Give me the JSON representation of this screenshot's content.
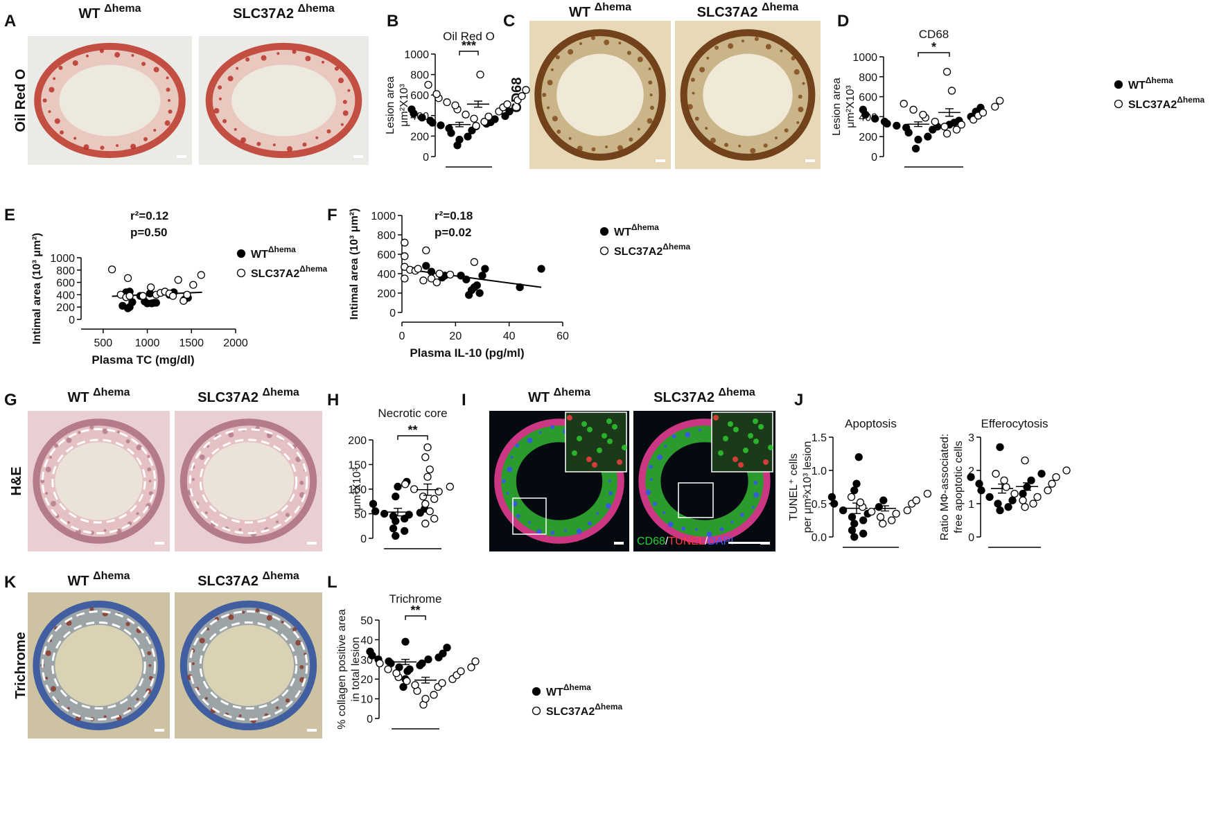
{
  "panels": [
    {
      "id": "A",
      "letter": "A",
      "top": [
        "WT",
        "SLC37A2"
      ],
      "sup": "Δhema",
      "side": "Oil Red O",
      "stain": "oilred",
      "inset": false,
      "merge": false,
      "dashed": false
    },
    {
      "id": "C",
      "letter": "C",
      "top": [
        "WT",
        "SLC37A2"
      ],
      "sup": "Δhema",
      "side": "CD68",
      "stain": "cd68",
      "inset": false,
      "merge": false,
      "dashed": false
    },
    {
      "id": "G",
      "letter": "G",
      "top": [
        "WT",
        "SLC37A2"
      ],
      "sup": "Δhema",
      "side": "H&E",
      "stain": "he",
      "inset": false,
      "merge": false,
      "dashed": true
    },
    {
      "id": "I",
      "letter": "I",
      "top": [
        "WT",
        "SLC37A2"
      ],
      "sup": "Δhema",
      "side": "",
      "stain": "fluor",
      "inset": true,
      "merge": true,
      "dashed": false
    },
    {
      "id": "K",
      "letter": "K",
      "top": [
        "WT",
        "SLC37A2"
      ],
      "sup": "Δhema",
      "side": "Trichrome",
      "stain": "trichrome",
      "inset": false,
      "merge": false,
      "dashed": true
    }
  ],
  "merge_label": [
    "CD68",
    "/",
    "TUNEL",
    "/",
    "DAPI"
  ],
  "merge_colors": [
    "#27d13a",
    "#ffffff",
    "#ff3b3b",
    "#ffffff",
    "#4a5cff"
  ],
  "legend": {
    "wt_label": "WT",
    "ko_label": "SLC37A2",
    "suffix": "Δhema"
  },
  "colors": {
    "text": "#111111",
    "filled": "#000000",
    "open": "#ffffff",
    "scale_bar": "#ffffff"
  },
  "chart_data": [
    {
      "id": "B",
      "letter": "B",
      "type": "scatter",
      "title": "Oil Red O",
      "ylabel": [
        "Lesion area",
        "μm²X10³"
      ],
      "ylim": [
        0,
        1000
      ],
      "yticks": [
        0,
        200,
        400,
        600,
        800,
        1000
      ],
      "sig": "***",
      "series": [
        {
          "values": [
            110,
            165,
            195,
            230,
            255,
            275,
            295,
            305,
            320,
            330,
            335,
            350,
            365,
            380,
            395,
            420,
            440,
            460
          ]
        },
        {
          "values": [
            300,
            340,
            370,
            390,
            410,
            440,
            460,
            480,
            500,
            510,
            530,
            550,
            570,
            590,
            610,
            650,
            700,
            800
          ]
        }
      ]
    },
    {
      "id": "D",
      "letter": "D",
      "type": "scatter",
      "title": "CD68",
      "ylabel": [
        "Lesion area",
        "μm²X10³"
      ],
      "ylim": [
        0,
        1000
      ],
      "yticks": [
        0,
        200,
        400,
        600,
        800,
        1000
      ],
      "sig": "*",
      "series": [
        {
          "values": [
            80,
            170,
            200,
            240,
            270,
            290,
            300,
            310,
            320,
            330,
            340,
            350,
            360,
            380,
            400,
            420,
            450,
            470,
            490
          ]
        },
        {
          "values": [
            230,
            270,
            300,
            320,
            350,
            370,
            390,
            410,
            420,
            440,
            470,
            500,
            530,
            560,
            660,
            850
          ]
        }
      ]
    },
    {
      "id": "H",
      "letter": "H",
      "type": "scatter",
      "title": "Necrotic core",
      "ylabel": [
        "",
        "μm²X10³"
      ],
      "ylim": [
        0,
        200
      ],
      "yticks": [
        0,
        50,
        100,
        150,
        200
      ],
      "sig": "**",
      "series": [
        {
          "values": [
            5,
            15,
            20,
            35,
            40,
            45,
            48,
            50,
            52,
            55,
            60,
            70,
            85,
            105,
            115
          ]
        },
        {
          "values": [
            30,
            40,
            55,
            70,
            80,
            85,
            95,
            100,
            105,
            110,
            125,
            140,
            165,
            185
          ]
        }
      ]
    },
    {
      "id": "J1",
      "letter": "J",
      "type": "scatter",
      "title": "Apoptosis",
      "ylabel": [
        "TUNEL⁺ cells",
        "per μm²x10³ lesion"
      ],
      "ylim": [
        0,
        1.5
      ],
      "yticks": [
        "0.0",
        "0.5",
        "1.0",
        "1.5"
      ],
      "sig": "",
      "series": [
        {
          "values": [
            0.0,
            0.05,
            0.1,
            0.2,
            0.25,
            0.3,
            0.35,
            0.4,
            0.45,
            0.5,
            0.55,
            0.6,
            0.7,
            0.8,
            1.2
          ]
        },
        {
          "values": [
            0.2,
            0.25,
            0.3,
            0.35,
            0.38,
            0.4,
            0.45,
            0.5,
            0.52,
            0.55,
            0.6,
            0.65
          ]
        }
      ]
    },
    {
      "id": "J2",
      "letter": "",
      "type": "scatter",
      "title": "Efferocytosis",
      "ylabel": [
        "Ratio MΦ-associated:",
        "free apoptotic cells"
      ],
      "ylim": [
        0,
        3
      ],
      "yticks": [
        "0",
        "1",
        "2",
        "3"
      ],
      "sig": "",
      "series": [
        {
          "values": [
            0.8,
            0.9,
            1.0,
            1.1,
            1.2,
            1.3,
            1.4,
            1.5,
            1.6,
            1.7,
            1.8,
            1.9,
            2.7
          ]
        },
        {
          "values": [
            0.9,
            1.0,
            1.1,
            1.2,
            1.3,
            1.4,
            1.5,
            1.6,
            1.7,
            1.8,
            1.9,
            2.0,
            2.3
          ]
        }
      ]
    },
    {
      "id": "L",
      "letter": "L",
      "type": "scatter",
      "title": "Trichrome",
      "ylabel": [
        "% collagen positive area",
        "in total lesion"
      ],
      "ylim": [
        0,
        50
      ],
      "yticks": [
        0,
        10,
        20,
        30,
        40,
        50
      ],
      "sig": "**",
      "series": [
        {
          "values": [
            16,
            20,
            24,
            25,
            26,
            27,
            28,
            28,
            29,
            30,
            30,
            31,
            32,
            33,
            34,
            36,
            39
          ]
        },
        {
          "values": [
            7,
            10,
            12,
            14,
            16,
            17,
            18,
            19,
            20,
            21,
            22,
            23,
            24,
            25,
            26,
            28,
            29
          ]
        }
      ]
    },
    {
      "id": "E",
      "letter": "E",
      "type": "scatter",
      "title": "",
      "xlabel": "Plasma TC (mg/dl)",
      "ylabel": "Intimal area (10³ μm²)",
      "xlim": [
        0,
        2000
      ],
      "xticks": [
        500,
        1000,
        1500,
        2000
      ],
      "ylim": [
        0,
        1000
      ],
      "yticks": [
        0,
        200,
        400,
        600,
        800,
        1000
      ],
      "stat": [
        "r²=0.12",
        "p=0.50"
      ],
      "fit": [
        [
          600,
          375
        ],
        [
          1620,
          440
        ]
      ],
      "series": [
        {
          "points": [
            [
              720,
              220
            ],
            [
              760,
              440
            ],
            [
              780,
              180
            ],
            [
              800,
              200
            ],
            [
              800,
              450
            ],
            [
              830,
              280
            ],
            [
              920,
              380
            ],
            [
              970,
              290
            ],
            [
              1000,
              260
            ],
            [
              1030,
              420
            ],
            [
              1050,
              260
            ],
            [
              1080,
              270
            ],
            [
              1100,
              270
            ],
            [
              1250,
              400
            ],
            [
              1300,
              440
            ],
            [
              1420,
              320
            ],
            [
              1460,
              350
            ]
          ]
        },
        {
          "points": [
            [
              600,
              810
            ],
            [
              700,
              400
            ],
            [
              760,
              360
            ],
            [
              780,
              670
            ],
            [
              800,
              380
            ],
            [
              950,
              380
            ],
            [
              1040,
              520
            ],
            [
              1100,
              400
            ],
            [
              1150,
              430
            ],
            [
              1200,
              450
            ],
            [
              1250,
              420
            ],
            [
              1290,
              380
            ],
            [
              1350,
              640
            ],
            [
              1410,
              300
            ],
            [
              1450,
              400
            ],
            [
              1520,
              560
            ],
            [
              1610,
              720
            ]
          ]
        }
      ]
    },
    {
      "id": "F",
      "letter": "F",
      "type": "scatter",
      "title": "",
      "xlabel": "Plasma IL-10 (pg/ml)",
      "ylabel": "Intimal area (10³ μm²)",
      "xlim": [
        0,
        60
      ],
      "xticks": [
        0,
        20,
        40,
        60
      ],
      "ylim": [
        0,
        1000
      ],
      "yticks": [
        0,
        200,
        400,
        600,
        800,
        1000
      ],
      "stat": [
        "r²=0.18",
        "p=0.02"
      ],
      "fit": [
        [
          0,
          450
        ],
        [
          52,
          260
        ]
      ],
      "series": [
        {
          "points": [
            [
              9,
              480
            ],
            [
              11,
              420
            ],
            [
              15,
              360
            ],
            [
              16,
              380
            ],
            [
              22,
              380
            ],
            [
              24,
              340
            ],
            [
              25,
              180
            ],
            [
              26,
              230
            ],
            [
              27,
              260
            ],
            [
              28,
              280
            ],
            [
              29,
              200
            ],
            [
              30,
              380
            ],
            [
              31,
              450
            ],
            [
              44,
              260
            ],
            [
              52,
              450
            ]
          ]
        },
        {
          "points": [
            [
              1,
              720
            ],
            [
              1,
              580
            ],
            [
              1,
              470
            ],
            [
              1,
              350
            ],
            [
              3,
              440
            ],
            [
              5,
              430
            ],
            [
              6,
              450
            ],
            [
              8,
              330
            ],
            [
              9,
              640
            ],
            [
              11,
              350
            ],
            [
              13,
              310
            ],
            [
              14,
              400
            ],
            [
              18,
              390
            ],
            [
              27,
              520
            ]
          ]
        }
      ]
    }
  ]
}
